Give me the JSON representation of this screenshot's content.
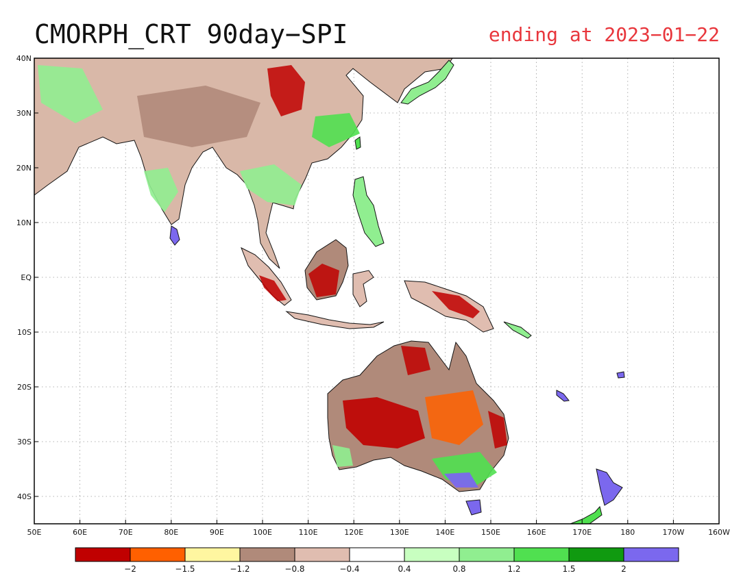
{
  "title": "CMORPH_CRT 90day−SPI",
  "subtitle": "ending at 2023−01−22",
  "map": {
    "lon_range": [
      50,
      200
    ],
    "lat_range": [
      -45,
      40
    ],
    "lon_ticks": [
      {
        "lon": 50,
        "label": "50E"
      },
      {
        "lon": 60,
        "label": "60E"
      },
      {
        "lon": 70,
        "label": "70E"
      },
      {
        "lon": 80,
        "label": "80E"
      },
      {
        "lon": 90,
        "label": "90E"
      },
      {
        "lon": 100,
        "label": "100E"
      },
      {
        "lon": 110,
        "label": "110E"
      },
      {
        "lon": 120,
        "label": "120E"
      },
      {
        "lon": 130,
        "label": "130E"
      },
      {
        "lon": 140,
        "label": "140E"
      },
      {
        "lon": 150,
        "label": "150E"
      },
      {
        "lon": 160,
        "label": "160E"
      },
      {
        "lon": 170,
        "label": "170E"
      },
      {
        "lon": 180,
        "label": "180"
      },
      {
        "lon": 190,
        "label": "170W"
      },
      {
        "lon": 200,
        "label": "160W"
      }
    ],
    "lat_ticks": [
      {
        "lat": 40,
        "label": "40N"
      },
      {
        "lat": 30,
        "label": "30N"
      },
      {
        "lat": 20,
        "label": "20N"
      },
      {
        "lat": 10,
        "label": "10N"
      },
      {
        "lat": 0,
        "label": "EQ"
      },
      {
        "lat": -10,
        "label": "10S"
      },
      {
        "lat": -20,
        "label": "20S"
      },
      {
        "lat": -30,
        "label": "30S"
      },
      {
        "lat": -40,
        "label": "40S"
      }
    ],
    "grid": "dotted"
  },
  "colorbar": {
    "colors": [
      "#c00000",
      "#ff6000",
      "#fff6a0",
      "#b08a7a",
      "#e0bdb0",
      "#ffffff",
      "#c8ffc0",
      "#90ee90",
      "#50e050",
      "#109a10",
      "#7b68ee"
    ],
    "labels": [
      "−2",
      "−1.5",
      "−1.2",
      "−0.8",
      "−0.4",
      "0.4",
      "0.8",
      "1.2",
      "1.5",
      "2"
    ]
  }
}
